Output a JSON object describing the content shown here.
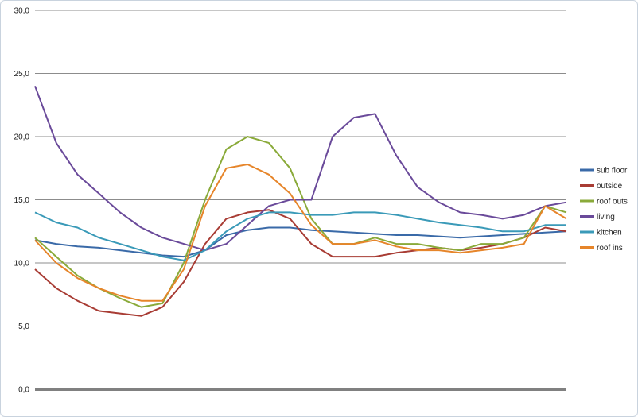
{
  "chart_data": {
    "type": "line",
    "title": "",
    "xlabel": "",
    "ylabel": "",
    "ylim": [
      0,
      30
    ],
    "y_ticks": [
      "0,0",
      "5,0",
      "10,0",
      "15,0",
      "20,0",
      "25,0",
      "30,0"
    ],
    "y_tick_values": [
      0,
      5,
      10,
      15,
      20,
      25,
      30
    ],
    "grid": "horizontal",
    "legend_position": "right",
    "x": [
      0,
      4,
      8,
      12,
      16,
      20,
      24,
      28,
      32,
      36,
      40,
      44,
      48,
      52,
      56,
      60,
      64,
      68,
      72,
      76,
      80,
      84,
      88,
      92,
      96,
      100
    ],
    "series": [
      {
        "name": "sub floor",
        "color": "#3a6aa8",
        "values": [
          11.8,
          11.5,
          11.3,
          11.2,
          11.0,
          10.8,
          10.6,
          10.5,
          11.0,
          12.2,
          12.6,
          12.8,
          12.8,
          12.6,
          12.5,
          12.4,
          12.3,
          12.2,
          12.2,
          12.1,
          12.0,
          12.1,
          12.2,
          12.3,
          12.4,
          12.5
        ]
      },
      {
        "name": "outside",
        "color": "#a83c34",
        "values": [
          9.5,
          8.0,
          7.0,
          6.2,
          6.0,
          5.8,
          6.5,
          8.5,
          11.5,
          13.5,
          14.0,
          14.2,
          13.5,
          11.5,
          10.5,
          10.5,
          10.5,
          10.8,
          11.0,
          11.2,
          11.0,
          11.2,
          11.5,
          12.0,
          12.8,
          12.5
        ]
      },
      {
        "name": "roof outs",
        "color": "#8aaa3a",
        "values": [
          12.0,
          10.5,
          9.0,
          8.0,
          7.2,
          6.5,
          6.8,
          10.0,
          15.0,
          19.0,
          20.0,
          19.5,
          17.5,
          13.5,
          11.5,
          11.5,
          12.0,
          11.5,
          11.5,
          11.2,
          11.0,
          11.5,
          11.5,
          12.0,
          14.5,
          14.0
        ]
      },
      {
        "name": "living",
        "color": "#6a4a9a",
        "values": [
          24.0,
          19.5,
          17.0,
          15.5,
          14.0,
          12.8,
          12.0,
          11.5,
          11.0,
          11.5,
          13.0,
          14.5,
          15.0,
          15.0,
          20.0,
          21.5,
          21.8,
          18.5,
          16.0,
          14.8,
          14.0,
          13.8,
          13.5,
          13.8,
          14.5,
          14.8
        ]
      },
      {
        "name": "kitchen",
        "color": "#3a9ab8",
        "values": [
          14.0,
          13.2,
          12.8,
          12.0,
          11.5,
          11.0,
          10.5,
          10.2,
          11.0,
          12.5,
          13.5,
          14.0,
          14.0,
          13.8,
          13.8,
          14.0,
          14.0,
          13.8,
          13.5,
          13.2,
          13.0,
          12.8,
          12.5,
          12.5,
          13.0,
          13.0
        ]
      },
      {
        "name": "roof ins",
        "color": "#e6852a",
        "values": [
          11.8,
          10.0,
          8.8,
          8.0,
          7.4,
          7.0,
          7.0,
          9.5,
          14.5,
          17.5,
          17.8,
          17.0,
          15.5,
          13.0,
          11.5,
          11.5,
          11.8,
          11.3,
          11.0,
          11.0,
          10.8,
          11.0,
          11.2,
          11.5,
          14.5,
          13.5
        ]
      }
    ]
  }
}
